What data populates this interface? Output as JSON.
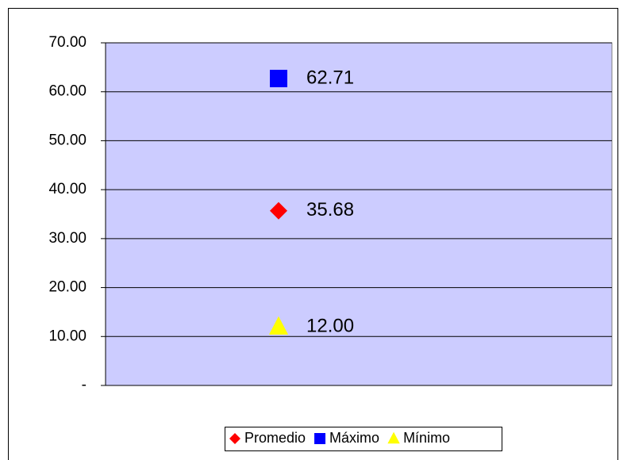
{
  "chart_data": {
    "type": "line",
    "categories": [
      null
    ],
    "series": [
      {
        "name": "Promedio",
        "color": "#ff0000",
        "marker": "diamond",
        "values": [
          35.68
        ],
        "value_labels": [
          "35.68"
        ]
      },
      {
        "name": "Máximo",
        "color": "#0000ff",
        "marker": "square",
        "values": [
          62.71
        ],
        "value_labels": [
          "62.71"
        ]
      },
      {
        "name": "Mínimo",
        "color": "#ffff00",
        "marker": "triangle",
        "values": [
          12
        ],
        "value_labels": [
          "12.00"
        ]
      }
    ],
    "ylim": [
      0,
      70
    ],
    "yticks": [
      {
        "value": 0,
        "label": "-"
      },
      {
        "value": 10,
        "label": "10.00"
      },
      {
        "value": 20,
        "label": "20.00"
      },
      {
        "value": 30,
        "label": "30.00"
      },
      {
        "value": 40,
        "label": "40.00"
      },
      {
        "value": 50,
        "label": "50.00"
      },
      {
        "value": 60,
        "label": "60.00"
      },
      {
        "value": 70,
        "label": "70.00"
      }
    ],
    "grid": true,
    "plot_background": "#ccccff",
    "legend": "bottom"
  }
}
